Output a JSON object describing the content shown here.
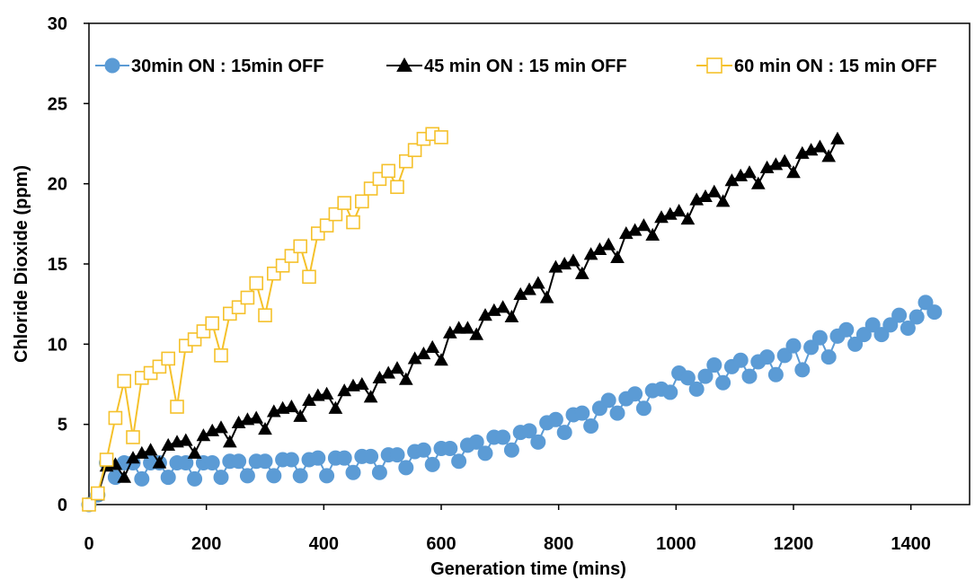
{
  "chart_data": {
    "type": "line",
    "title": "",
    "xlabel": "Generation time (mins)",
    "ylabel": "Chloride Dioxide (ppm)",
    "xlim": [
      0,
      1500
    ],
    "ylim": [
      0,
      30
    ],
    "xticks": [
      0,
      200,
      400,
      600,
      800,
      1000,
      1200,
      1400
    ],
    "yticks": [
      0,
      5,
      10,
      15,
      20,
      25,
      30
    ],
    "legend_position": "top",
    "grid": false,
    "series": [
      {
        "name": "30min ON : 15min OFF",
        "color": "#5b9bd5",
        "marker": "circle",
        "x": [
          0,
          15,
          30,
          45,
          60,
          75,
          90,
          105,
          120,
          135,
          150,
          165,
          180,
          195,
          210,
          225,
          240,
          255,
          270,
          285,
          300,
          315,
          330,
          345,
          360,
          375,
          390,
          405,
          420,
          435,
          450,
          465,
          480,
          495,
          510,
          525,
          540,
          555,
          570,
          585,
          600,
          615,
          630,
          645,
          660,
          675,
          690,
          705,
          720,
          735,
          750,
          765,
          780,
          795,
          810,
          825,
          840,
          855,
          870,
          885,
          900,
          915,
          930,
          945,
          960,
          975,
          990,
          1005,
          1020,
          1035,
          1050,
          1065,
          1080,
          1095,
          1110,
          1125,
          1140,
          1155,
          1170,
          1185,
          1200,
          1215,
          1230,
          1245,
          1260,
          1275,
          1290,
          1305,
          1320,
          1335,
          1350,
          1365,
          1380,
          1395,
          1410,
          1425,
          1440
        ],
        "y": [
          0,
          0.6,
          2.6,
          1.7,
          2.6,
          2.6,
          1.6,
          2.6,
          2.6,
          1.7,
          2.6,
          2.6,
          1.6,
          2.6,
          2.6,
          1.7,
          2.7,
          2.7,
          1.8,
          2.7,
          2.7,
          1.8,
          2.8,
          2.8,
          1.8,
          2.8,
          2.9,
          1.8,
          2.9,
          2.9,
          2.0,
          3.0,
          3.0,
          2.0,
          3.1,
          3.1,
          2.3,
          3.3,
          3.4,
          2.5,
          3.5,
          3.5,
          2.7,
          3.7,
          3.9,
          3.2,
          4.2,
          4.2,
          3.4,
          4.5,
          4.6,
          3.9,
          5.1,
          5.3,
          4.5,
          5.6,
          5.7,
          4.9,
          6.0,
          6.5,
          5.7,
          6.6,
          6.9,
          6.0,
          7.1,
          7.2,
          7.0,
          8.2,
          7.9,
          7.2,
          8.0,
          8.7,
          7.6,
          8.6,
          9.0,
          8.0,
          8.9,
          9.2,
          8.1,
          9.3,
          9.9,
          8.4,
          9.8,
          10.4,
          9.2,
          10.5,
          10.9,
          10.0,
          10.6,
          11.2,
          10.6,
          11.2,
          11.8,
          11.0,
          11.7,
          12.6,
          12.0
        ]
      },
      {
        "name": "45 min ON : 15 min OFF",
        "color": "#000000",
        "marker": "triangle",
        "x": [
          0,
          15,
          30,
          45,
          60,
          75,
          90,
          105,
          120,
          135,
          150,
          165,
          180,
          195,
          210,
          225,
          240,
          255,
          270,
          285,
          300,
          315,
          330,
          345,
          360,
          375,
          390,
          405,
          420,
          435,
          450,
          465,
          480,
          495,
          510,
          525,
          540,
          555,
          570,
          585,
          600,
          615,
          630,
          645,
          660,
          675,
          690,
          705,
          720,
          735,
          750,
          765,
          780,
          795,
          810,
          825,
          840,
          855,
          870,
          885,
          900,
          915,
          930,
          945,
          960,
          975,
          990,
          1005,
          1020,
          1035,
          1050,
          1065,
          1080,
          1095,
          1110,
          1125,
          1140,
          1155,
          1170,
          1185,
          1200,
          1215,
          1230,
          1245,
          1260,
          1275
        ],
        "y": [
          0,
          0.6,
          2.4,
          2.5,
          1.7,
          2.9,
          3.2,
          3.4,
          2.6,
          3.7,
          3.9,
          4.0,
          3.2,
          4.3,
          4.6,
          4.8,
          3.9,
          5.1,
          5.3,
          5.4,
          4.7,
          5.8,
          6.0,
          6.1,
          5.5,
          6.5,
          6.8,
          6.9,
          6.0,
          7.1,
          7.4,
          7.5,
          6.7,
          7.9,
          8.2,
          8.5,
          7.8,
          9.1,
          9.4,
          9.8,
          9.0,
          10.7,
          11.0,
          11.0,
          10.6,
          11.8,
          12.1,
          12.3,
          11.7,
          13.1,
          13.4,
          13.8,
          12.9,
          14.8,
          15.0,
          15.2,
          14.4,
          15.6,
          15.9,
          16.2,
          15.4,
          16.9,
          17.1,
          17.4,
          16.8,
          17.9,
          18.1,
          18.3,
          17.8,
          19.0,
          19.2,
          19.5,
          18.9,
          20.2,
          20.5,
          20.7,
          20.0,
          21.0,
          21.2,
          21.4,
          20.7,
          21.9,
          22.1,
          22.3,
          21.7,
          22.8
        ]
      },
      {
        "name": "60 min ON : 15 min OFF",
        "color": "#f5c12b",
        "marker": "square-open",
        "x": [
          0,
          15,
          30,
          45,
          60,
          75,
          90,
          105,
          120,
          135,
          150,
          165,
          180,
          195,
          210,
          225,
          240,
          255,
          270,
          285,
          300,
          315,
          330,
          345,
          360,
          375,
          390,
          405,
          420,
          435,
          450,
          465,
          480,
          495,
          510,
          525,
          540,
          555,
          570,
          585,
          600
        ],
        "y": [
          0,
          0.7,
          2.8,
          5.4,
          7.7,
          4.2,
          7.9,
          8.2,
          8.6,
          9.1,
          6.1,
          9.9,
          10.3,
          10.8,
          11.3,
          9.3,
          11.9,
          12.3,
          12.9,
          13.8,
          11.8,
          14.4,
          14.9,
          15.5,
          16.1,
          14.2,
          16.9,
          17.4,
          18.1,
          18.8,
          17.6,
          18.9,
          19.7,
          20.3,
          20.8,
          19.8,
          21.4,
          22.1,
          22.8,
          23.1,
          22.9
        ]
      }
    ]
  }
}
